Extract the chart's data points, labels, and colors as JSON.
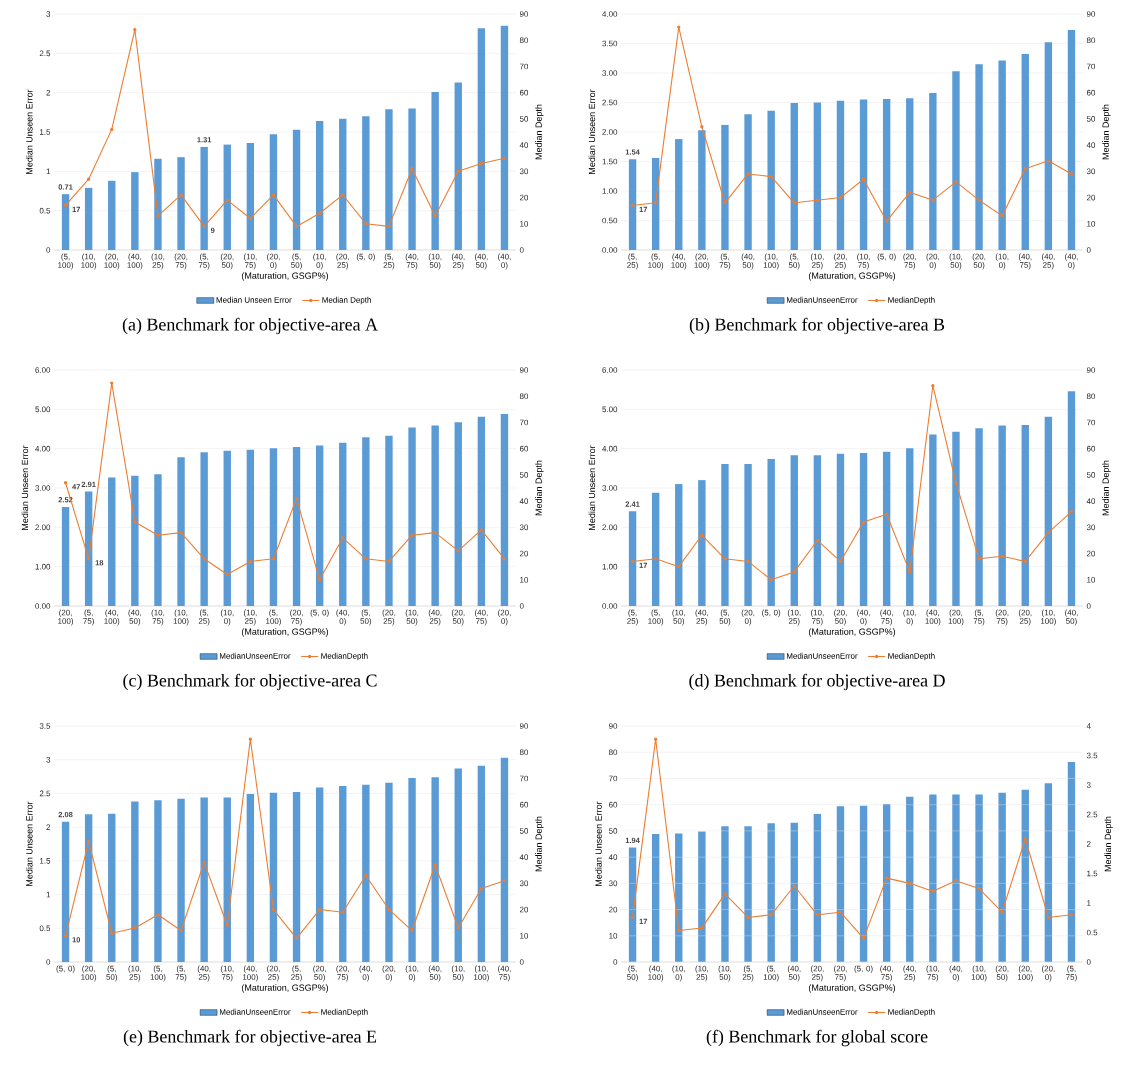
{
  "chart_data": [
    {
      "type": "bar",
      "title": "(a) Benchmark for objective-area A",
      "xlabel": "(Maturation, GSGP%)",
      "ylabel": "Median Unseen Error",
      "y2label": "Median Depth",
      "legend": "bottom",
      "grid": "y",
      "categories": [
        "(5, 100)",
        "(10, 100)",
        "(20, 100)",
        "(40, 100)",
        "(10, 25)",
        "(20, 75)",
        "(5, 75)",
        "(20, 50)",
        "(10, 75)",
        "(20, 0)",
        "(5, 50)",
        "(10, 0)",
        "(20, 25)",
        "(5, 0)",
        "(5, 25)",
        "(40, 75)",
        "(10, 50)",
        "(40, 25)",
        "(40, 50)",
        "(40, 0)"
      ],
      "ylim": [
        0,
        3
      ],
      "yticks": [
        0,
        0.5,
        1,
        1.5,
        2,
        2.5,
        3
      ],
      "y2lim": [
        0,
        90
      ],
      "y2ticks": [
        0,
        10,
        20,
        30,
        40,
        50,
        60,
        70,
        80,
        90
      ],
      "series": [
        {
          "name": "Median Unseen Error",
          "color": "#5b9bd5",
          "values": [
            0.71,
            0.79,
            0.88,
            0.99,
            1.16,
            1.18,
            1.31,
            1.34,
            1.36,
            1.47,
            1.53,
            1.64,
            1.67,
            1.7,
            1.79,
            1.8,
            2.01,
            2.13,
            2.82,
            2.85
          ],
          "value_labels": [
            "0.71",
            null,
            null,
            null,
            null,
            null,
            "1.31",
            null,
            null,
            null,
            null,
            null,
            null,
            null,
            null,
            null,
            null,
            null,
            null,
            null
          ]
        },
        {
          "name": "Median Depth",
          "type": "line",
          "axis": "y2",
          "marker": "circle",
          "color": "#ed7d31",
          "values": [
            17,
            27,
            46,
            84,
            13,
            21,
            9,
            19,
            12,
            21,
            9,
            14,
            21,
            10,
            9,
            31,
            13,
            30,
            33,
            35
          ],
          "value_labels": [
            "17",
            null,
            null,
            null,
            null,
            null,
            "9",
            null,
            null,
            null,
            null,
            null,
            null,
            null,
            null,
            null,
            null,
            null,
            null,
            null
          ]
        }
      ]
    },
    {
      "type": "bar",
      "title": "(b) Benchmark for objective-area B",
      "xlabel": "(Maturation, GSGP%)",
      "ylabel": "Median Unseen Error",
      "y2label": "Median Depth",
      "legend": "bottom",
      "grid": "y",
      "categories": [
        "(5, 25)",
        "(5, 100)",
        "(40, 100)",
        "(20, 100)",
        "(5, 75)",
        "(40, 50)",
        "(10, 100)",
        "(5, 50)",
        "(10, 25)",
        "(20, 25)",
        "(10, 75)",
        "(5, 0)",
        "(20, 75)",
        "(20, 0)",
        "(10, 50)",
        "(20, 50)",
        "(10, 0)",
        "(40, 75)",
        "(40, 25)",
        "(40, 0)"
      ],
      "ylim": [
        0,
        4
      ],
      "yticks": [
        {
          "value": 0,
          "label": "0.00"
        },
        {
          "value": 0.5,
          "label": "0.50"
        },
        {
          "value": 1,
          "label": "1.00"
        },
        {
          "value": 1.5,
          "label": "1.50"
        },
        {
          "value": 2,
          "label": "2.00"
        },
        {
          "value": 2.5,
          "label": "2.50"
        },
        {
          "value": 3,
          "label": "3.00"
        },
        {
          "value": 3.5,
          "label": "3.50"
        },
        {
          "value": 4,
          "label": "4.00"
        }
      ],
      "y2lim": [
        0,
        90
      ],
      "y2ticks": [
        0,
        10,
        20,
        30,
        40,
        50,
        60,
        70,
        80,
        90
      ],
      "series": [
        {
          "name": "MedianUnseenError",
          "color": "#5b9bd5",
          "values": [
            1.54,
            1.56,
            1.88,
            2.03,
            2.12,
            2.3,
            2.36,
            2.49,
            2.5,
            2.53,
            2.55,
            2.56,
            2.57,
            2.66,
            3.03,
            3.15,
            3.21,
            3.32,
            3.52,
            3.73
          ],
          "value_labels": [
            "1.54",
            null,
            null,
            null,
            null,
            null,
            null,
            null,
            null,
            null,
            null,
            null,
            null,
            null,
            null,
            null,
            null,
            null,
            null,
            null
          ]
        },
        {
          "name": "MedianDepth",
          "type": "line",
          "axis": "y2",
          "marker": "circle",
          "color": "#ed7d31",
          "values": [
            17,
            18,
            85,
            47,
            18,
            29,
            28,
            18,
            19,
            20,
            27,
            11,
            22,
            19,
            26,
            19,
            13,
            31,
            34,
            29
          ],
          "value_labels": [
            "17",
            null,
            null,
            null,
            null,
            null,
            null,
            null,
            null,
            null,
            null,
            null,
            null,
            null,
            null,
            null,
            null,
            null,
            null,
            null
          ]
        }
      ]
    },
    {
      "type": "bar",
      "title": "(c) Benchmark for objective-area C",
      "xlabel": "(Maturation, GSGP%)",
      "ylabel": "Median Unseen Error",
      "y2label": "Median Depth",
      "legend": "bottom",
      "grid": "y",
      "categories": [
        "(20, 100)",
        "(5, 75)",
        "(40, 100)",
        "(40, 50)",
        "(10, 75)",
        "(10, 100)",
        "(5, 25)",
        "(10, 0)",
        "(10, 25)",
        "(5, 100)",
        "(20, 75)",
        "(5, 0)",
        "(40, 0)",
        "(5, 50)",
        "(20, 25)",
        "(10, 50)",
        "(40, 25)",
        "(20, 50)",
        "(40, 75)",
        "(20, 0)"
      ],
      "ylim": [
        0,
        6
      ],
      "yticks": [
        {
          "value": 0,
          "label": "0.00"
        },
        {
          "value": 1,
          "label": "1.00"
        },
        {
          "value": 2,
          "label": "2.00"
        },
        {
          "value": 3,
          "label": "3.00"
        },
        {
          "value": 4,
          "label": "4.00"
        },
        {
          "value": 5,
          "label": "5.00"
        },
        {
          "value": 6,
          "label": "6.00"
        }
      ],
      "y2lim": [
        0,
        90
      ],
      "y2ticks": [
        0,
        10,
        20,
        30,
        40,
        50,
        60,
        70,
        80,
        90
      ],
      "series": [
        {
          "name": "MedianUnseenError",
          "color": "#5b9bd5",
          "values": [
            2.52,
            2.91,
            3.27,
            3.31,
            3.35,
            3.78,
            3.91,
            3.95,
            3.97,
            4.01,
            4.04,
            4.08,
            4.15,
            4.29,
            4.33,
            4.54,
            4.59,
            4.67,
            4.81,
            4.88
          ],
          "value_labels": [
            "2.52",
            "2.91",
            null,
            null,
            null,
            null,
            null,
            null,
            null,
            null,
            null,
            null,
            null,
            null,
            null,
            null,
            null,
            null,
            null,
            null
          ]
        },
        {
          "name": "MedianDepth",
          "type": "line",
          "axis": "y2",
          "marker": "circle",
          "color": "#ed7d31",
          "values": [
            47,
            18,
            85,
            32,
            27,
            28,
            18,
            12,
            17,
            18,
            41,
            10,
            26,
            18,
            17,
            27,
            28,
            21,
            29,
            18
          ],
          "value_labels": [
            "47",
            "18",
            null,
            null,
            null,
            null,
            null,
            null,
            null,
            null,
            null,
            null,
            null,
            null,
            null,
            null,
            null,
            null,
            null,
            null
          ]
        }
      ]
    },
    {
      "type": "bar",
      "title": "(d) Benchmark for objective-area D",
      "xlabel": "(Maturation, GSGP%)",
      "ylabel": "Median Unseen Error",
      "y2label": "Median Depth",
      "legend": "bottom",
      "grid": "y",
      "categories": [
        "(5, 25)",
        "(5, 100)",
        "(10, 50)",
        "(40, 25)",
        "(5, 50)",
        "(20, 0)",
        "(5, 0)",
        "(10, 25)",
        "(10, 75)",
        "(20, 50)",
        "(40, 0)",
        "(40, 75)",
        "(10, 0)",
        "(40, 100)",
        "(20, 100)",
        "(5, 75)",
        "(20, 75)",
        "(20, 25)",
        "(10, 100)",
        "(40, 50)"
      ],
      "ylim": [
        0,
        6
      ],
      "yticks": [
        {
          "value": 0,
          "label": "0.00"
        },
        {
          "value": 1,
          "label": "1.00"
        },
        {
          "value": 2,
          "label": "2.00"
        },
        {
          "value": 3,
          "label": "3.00"
        },
        {
          "value": 4,
          "label": "4.00"
        },
        {
          "value": 5,
          "label": "5.00"
        },
        {
          "value": 6,
          "label": "6.00"
        }
      ],
      "y2lim": [
        0,
        90
      ],
      "y2ticks": [
        0,
        10,
        20,
        30,
        40,
        50,
        60,
        70,
        80,
        90
      ],
      "series": [
        {
          "name": "MedianUnseenError",
          "color": "#5b9bd5",
          "values": [
            2.41,
            2.88,
            3.1,
            3.2,
            3.61,
            3.61,
            3.74,
            3.83,
            3.83,
            3.87,
            3.89,
            3.92,
            4.01,
            4.36,
            4.43,
            4.52,
            4.59,
            4.6,
            4.81,
            5.46
          ],
          "value_labels": [
            "2.41",
            null,
            null,
            null,
            null,
            null,
            null,
            null,
            null,
            null,
            null,
            null,
            null,
            null,
            null,
            null,
            null,
            null,
            null,
            null
          ]
        },
        {
          "name": "MedianDepth",
          "type": "line",
          "axis": "y2",
          "marker": "circle",
          "color": "#ed7d31",
          "values": [
            17,
            18,
            15,
            27,
            18,
            17,
            10,
            13,
            25,
            17,
            32,
            35,
            13,
            84,
            47,
            18,
            19,
            17,
            28,
            36
          ],
          "value_labels": [
            "17",
            null,
            null,
            null,
            null,
            null,
            null,
            null,
            null,
            null,
            null,
            null,
            null,
            null,
            null,
            null,
            null,
            null,
            null,
            null
          ]
        }
      ]
    },
    {
      "type": "bar",
      "title": "(e) Benchmark for objective-area E",
      "xlabel": "(Maturation, GSGP%)",
      "ylabel": "Median Unseen Error",
      "y2label": "Median Depth",
      "legend": "bottom",
      "grid": "y",
      "categories": [
        "(5, 0)",
        "(20, 100)",
        "(5, 50)",
        "(10, 25)",
        "(5, 100)",
        "(5, 75)",
        "(40, 25)",
        "(10, 75)",
        "(40, 100)",
        "(20, 25)",
        "(5, 25)",
        "(20, 50)",
        "(20, 75)",
        "(40, 0)",
        "(20, 0)",
        "(10, 0)",
        "(40, 50)",
        "(10, 50)",
        "(10, 100)",
        "(40, 75)"
      ],
      "ylim": [
        0,
        3.5
      ],
      "yticks": [
        0,
        0.5,
        1,
        1.5,
        2,
        2.5,
        3,
        3.5
      ],
      "y2lim": [
        0,
        90
      ],
      "y2ticks": [
        0,
        10,
        20,
        30,
        40,
        50,
        60,
        70,
        80,
        90
      ],
      "series": [
        {
          "name": "MedianUnseenError",
          "color": "#5b9bd5",
          "values": [
            2.08,
            2.19,
            2.2,
            2.38,
            2.4,
            2.42,
            2.44,
            2.44,
            2.49,
            2.51,
            2.52,
            2.59,
            2.61,
            2.63,
            2.66,
            2.73,
            2.74,
            2.87,
            2.91,
            3.03
          ],
          "value_labels": [
            "2.08",
            null,
            null,
            null,
            null,
            null,
            null,
            null,
            null,
            null,
            null,
            null,
            null,
            null,
            null,
            null,
            null,
            null,
            null,
            null
          ]
        },
        {
          "name": "MedianDepth",
          "type": "line",
          "axis": "y2",
          "marker": "circle",
          "color": "#ed7d31",
          "values": [
            10,
            46,
            11,
            13,
            18,
            12,
            38,
            14,
            85,
            20,
            9,
            20,
            19,
            33,
            20,
            12,
            37,
            13,
            28,
            31
          ],
          "value_labels": [
            "10",
            null,
            null,
            null,
            null,
            null,
            null,
            null,
            null,
            null,
            null,
            null,
            null,
            null,
            null,
            null,
            null,
            null,
            null,
            null
          ]
        }
      ]
    },
    {
      "type": "bar",
      "title": "(f) Benchmark for global score",
      "xlabel": "(Maturation, GSGP%)",
      "ylabel": "Median Unseen Error",
      "y2label": "Median Depth",
      "legend": "bottom",
      "grid": "y",
      "categories": [
        "(5, 50)",
        "(40, 100)",
        "(10, 0)",
        "(10, 25)",
        "(10, 50)",
        "(5, 25)",
        "(5, 100)",
        "(40, 50)",
        "(20, 25)",
        "(20, 75)",
        "(5, 0)",
        "(40, 75)",
        "(40, 25)",
        "(10, 75)",
        "(40, 0)",
        "(10, 100)",
        "(20, 50)",
        "(20, 100)",
        "(20, 0)",
        "(5, 75)"
      ],
      "ylim": [
        0,
        90
      ],
      "yticks": [
        0,
        10,
        20,
        30,
        40,
        50,
        60,
        70,
        80,
        90
      ],
      "y2lim": [
        0,
        4
      ],
      "y2ticks": [
        0,
        0.5,
        1,
        1.5,
        2,
        2.5,
        3,
        3.5,
        4
      ],
      "series": [
        {
          "name": "MedianUnseenError",
          "axis": "y2",
          "color": "#5b9bd5",
          "values": [
            1.94,
            2.17,
            2.18,
            2.21,
            2.3,
            2.3,
            2.35,
            2.36,
            2.51,
            2.64,
            2.65,
            2.68,
            2.8,
            2.84,
            2.84,
            2.84,
            2.87,
            2.92,
            3.03,
            3.39
          ],
          "value_labels": [
            "1.94",
            null,
            null,
            null,
            null,
            null,
            null,
            null,
            null,
            null,
            null,
            null,
            null,
            null,
            null,
            null,
            null,
            null,
            null,
            null
          ]
        },
        {
          "name": "MedianDepth",
          "type": "line",
          "marker": "circle",
          "color": "#ed7d31",
          "values": [
            17,
            85,
            12,
            13,
            26,
            17,
            18,
            29,
            18,
            19,
            9,
            32,
            30,
            27,
            31,
            28,
            19,
            47,
            17,
            18
          ],
          "value_labels": [
            "17",
            null,
            null,
            null,
            null,
            null,
            null,
            null,
            null,
            null,
            null,
            null,
            null,
            null,
            null,
            null,
            null,
            null,
            null,
            null
          ]
        }
      ]
    }
  ]
}
